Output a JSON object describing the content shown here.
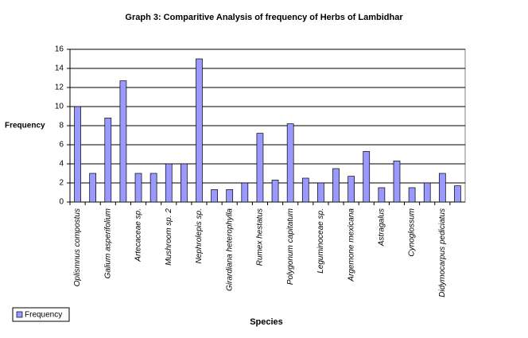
{
  "chart_data": {
    "type": "bar",
    "title": "Graph 3: Comparitive Analysis of frequency of Herbs of Lambidhar",
    "x_label": "Species",
    "y_label": "Frequency",
    "categories": [
      "Oplismnus compostus",
      null,
      "Galium asperifolium",
      null,
      "Artecaceae sp.",
      null,
      "Mushroom sp. 2",
      null,
      "Nephrolepis sp.",
      null,
      "Girardiana heterophylla",
      null,
      "Rumex hestatus",
      null,
      "Polygonum capitatum",
      null,
      "Leguminoceae sp.",
      null,
      "Argemone mexicana",
      null,
      "Astragalus",
      null,
      "Cynoglossum",
      null,
      "Didymocarpus pediciatus",
      null
    ],
    "series": [
      {
        "name": "Frequency",
        "color": "#9999ff",
        "values": [
          10,
          3,
          8.8,
          12.7,
          3,
          3,
          4,
          4,
          15,
          1.3,
          1.3,
          2,
          7.2,
          2.3,
          8.2,
          2.5,
          2,
          3.5,
          2.7,
          5.3,
          1.5,
          4.3,
          1.5,
          2,
          3,
          1.7
        ]
      }
    ],
    "ylim": [
      0,
      16
    ],
    "yticks": [
      0,
      2,
      4,
      6,
      8,
      10,
      12,
      14,
      16
    ],
    "grid": true,
    "legend": "bottom-left"
  }
}
